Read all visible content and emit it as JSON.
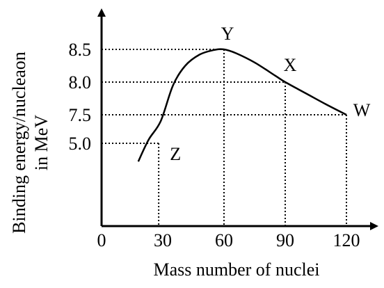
{
  "chart_data": {
    "type": "line",
    "xlabel": "Mass number of nuclei",
    "ylabel_lines": [
      "Binding energy/nucleaon",
      "in MeV"
    ],
    "x_ticks": [
      "0",
      "30",
      "60",
      "90",
      "120"
    ],
    "y_ticks": [
      "5.0",
      "7.5",
      "8.0",
      "8.5"
    ],
    "curve": [
      {
        "x": 18,
        "y": 3.9
      },
      {
        "x": 23,
        "y": 5.3
      },
      {
        "x": 29,
        "y": 6.95
      },
      {
        "x": 35,
        "y": 7.95
      },
      {
        "x": 41,
        "y": 8.25
      },
      {
        "x": 48,
        "y": 8.42
      },
      {
        "x": 55,
        "y": 8.49
      },
      {
        "x": 60,
        "y": 8.5
      },
      {
        "x": 66,
        "y": 8.44
      },
      {
        "x": 75,
        "y": 8.3
      },
      {
        "x": 85,
        "y": 8.1
      },
      {
        "x": 90,
        "y": 8.0
      },
      {
        "x": 100,
        "y": 7.83
      },
      {
        "x": 110,
        "y": 7.66
      },
      {
        "x": 120,
        "y": 7.5
      }
    ],
    "points": [
      {
        "label": "Z",
        "x": 28,
        "y": 5.0
      },
      {
        "label": "Y",
        "x": 60,
        "y": 8.5
      },
      {
        "label": "X",
        "x": 90,
        "y": 8.0
      },
      {
        "label": "W",
        "x": 120,
        "y": 7.5
      }
    ],
    "grid": false
  }
}
